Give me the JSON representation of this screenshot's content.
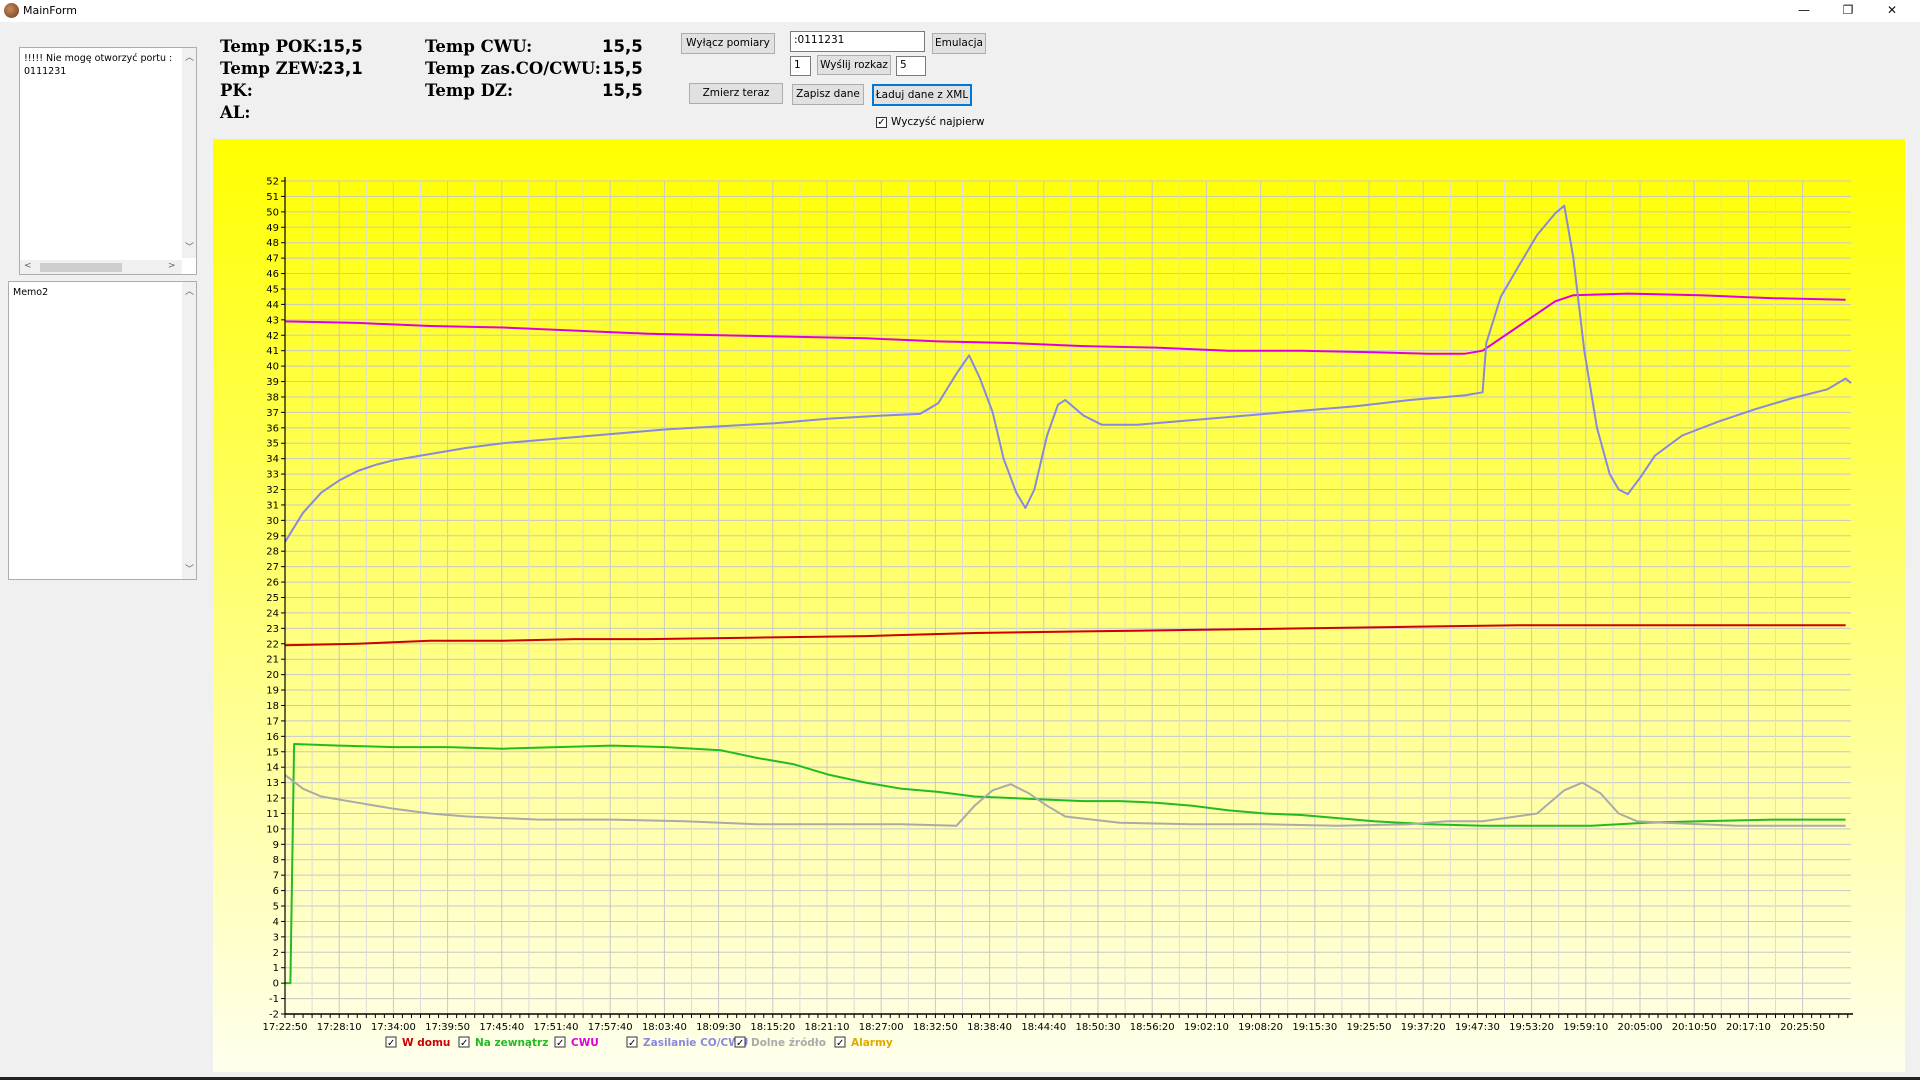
{
  "window": {
    "title": "MainForm",
    "minimize": "—",
    "restore": "❐",
    "close": "✕"
  },
  "memo1": {
    "lines": "!!!!! Nie mogę otworzyć portu :\n0111231"
  },
  "memo2": {
    "text": "Memo2"
  },
  "readouts": {
    "temp_pok_label": "Temp POK:",
    "temp_pok_value": "15,5",
    "temp_zew_label": "Temp ZEW:",
    "temp_zew_value": "23,1",
    "pk_label": "PK:",
    "al_label": "AL:",
    "temp_cwu_label": "Temp CWU:",
    "temp_cwu_value": "15,5",
    "temp_zas_label": "Temp zas.CO/CWU:",
    "temp_zas_value": "15,5",
    "temp_dz_label": "Temp DZ:",
    "temp_dz_value": "15,5"
  },
  "controls": {
    "wylacz_pomiary": "Wyłącz pomiary",
    "zmierz_teraz": "Zmierz teraz",
    "command_input": ":0111231",
    "emulacja": "Emulacja",
    "rozkaz_num": "1",
    "wyslij_rozkaz": "Wyślij rozkaz",
    "rozkaz_param": "5",
    "zapisz_dane": "Zapisz dane",
    "laduj_dane": "Ładuj dane z XML",
    "wyczysc_label": "Wyczyść najpierw",
    "wyczysc_checked": true
  },
  "chart_data": {
    "type": "line",
    "ylim": [
      -2,
      52
    ],
    "y_ticks": [
      -2,
      -1,
      0,
      1,
      2,
      3,
      4,
      5,
      6,
      7,
      8,
      9,
      10,
      11,
      12,
      13,
      14,
      15,
      16,
      17,
      18,
      19,
      20,
      21,
      22,
      23,
      24,
      25,
      26,
      27,
      28,
      29,
      30,
      31,
      32,
      33,
      34,
      35,
      36,
      37,
      38,
      39,
      40,
      41,
      42,
      43,
      44,
      45,
      46,
      47,
      48,
      49,
      50,
      51,
      52
    ],
    "x_ticks": [
      "17:22:50",
      "17:28:10",
      "17:34:00",
      "17:39:50",
      "17:45:40",
      "17:51:40",
      "17:57:40",
      "18:03:40",
      "18:09:30",
      "18:15:20",
      "18:21:10",
      "18:27:00",
      "18:32:50",
      "18:38:40",
      "18:44:40",
      "18:50:30",
      "18:56:20",
      "19:02:10",
      "19:08:20",
      "19:15:30",
      "19:25:50",
      "19:37:20",
      "19:47:30",
      "19:53:20",
      "19:59:10",
      "20:05:00",
      "20:10:50",
      "20:17:10",
      "20:25:50"
    ],
    "grid": true,
    "legend_position": "bottom",
    "background": [
      "#ffff00",
      "#ffffee"
    ],
    "series": [
      {
        "name": "W domu",
        "color": "#cc0000",
        "checked": true,
        "points": [
          [
            0,
            21.9
          ],
          [
            4,
            22.0
          ],
          [
            8,
            22.2
          ],
          [
            12,
            22.2
          ],
          [
            16,
            22.3
          ],
          [
            20,
            22.3
          ],
          [
            26,
            22.4
          ],
          [
            32,
            22.5
          ],
          [
            38,
            22.7
          ],
          [
            44,
            22.8
          ],
          [
            50,
            22.9
          ],
          [
            56,
            23.0
          ],
          [
            62,
            23.1
          ],
          [
            68,
            23.2
          ],
          [
            72,
            23.2
          ],
          [
            78,
            23.2
          ],
          [
            83,
            23.2
          ],
          [
            86,
            23.2
          ]
        ]
      },
      {
        "name": "Na zewnątrz",
        "color": "#22bb22",
        "checked": true,
        "points": [
          [
            0,
            0
          ],
          [
            0.3,
            0
          ],
          [
            0.5,
            15.5
          ],
          [
            3,
            15.4
          ],
          [
            6,
            15.3
          ],
          [
            9,
            15.3
          ],
          [
            12,
            15.2
          ],
          [
            15,
            15.3
          ],
          [
            18,
            15.4
          ],
          [
            21,
            15.3
          ],
          [
            24,
            15.1
          ],
          [
            26,
            14.6
          ],
          [
            28,
            14.2
          ],
          [
            30,
            13.5
          ],
          [
            32,
            13.0
          ],
          [
            34,
            12.6
          ],
          [
            36,
            12.4
          ],
          [
            38,
            12.1
          ],
          [
            40,
            12.0
          ],
          [
            42,
            11.9
          ],
          [
            44,
            11.8
          ],
          [
            46,
            11.8
          ],
          [
            48,
            11.7
          ],
          [
            50,
            11.5
          ],
          [
            52,
            11.2
          ],
          [
            54,
            11.0
          ],
          [
            56,
            10.9
          ],
          [
            58,
            10.7
          ],
          [
            60,
            10.5
          ],
          [
            63,
            10.3
          ],
          [
            66,
            10.2
          ],
          [
            69,
            10.2
          ],
          [
            72,
            10.2
          ],
          [
            75,
            10.4
          ],
          [
            78,
            10.5
          ],
          [
            82,
            10.6
          ],
          [
            86,
            10.6
          ]
        ]
      },
      {
        "name": "CWU",
        "color": "#dd00dd",
        "checked": true,
        "points": [
          [
            0,
            42.9
          ],
          [
            4,
            42.8
          ],
          [
            8,
            42.6
          ],
          [
            12,
            42.5
          ],
          [
            16,
            42.3
          ],
          [
            20,
            42.1
          ],
          [
            24,
            42.0
          ],
          [
            28,
            41.9
          ],
          [
            32,
            41.8
          ],
          [
            36,
            41.6
          ],
          [
            40,
            41.5
          ],
          [
            44,
            41.3
          ],
          [
            48,
            41.2
          ],
          [
            52,
            41.0
          ],
          [
            56,
            41.0
          ],
          [
            60,
            40.9
          ],
          [
            63,
            40.8
          ],
          [
            65,
            40.8
          ],
          [
            66,
            41.0
          ],
          [
            67,
            41.8
          ],
          [
            68,
            42.6
          ],
          [
            69,
            43.4
          ],
          [
            70,
            44.2
          ],
          [
            71,
            44.6
          ],
          [
            74,
            44.7
          ],
          [
            78,
            44.6
          ],
          [
            82,
            44.4
          ],
          [
            86,
            44.3
          ]
        ]
      },
      {
        "name": "Zasilanie CO/CWU",
        "color": "#8888dd",
        "checked": true,
        "points": [
          [
            0,
            28.6
          ],
          [
            1,
            30.5
          ],
          [
            2,
            31.8
          ],
          [
            3,
            32.6
          ],
          [
            4,
            33.2
          ],
          [
            5,
            33.6
          ],
          [
            6,
            33.9
          ],
          [
            8,
            34.3
          ],
          [
            10,
            34.7
          ],
          [
            12,
            35.0
          ],
          [
            15,
            35.3
          ],
          [
            18,
            35.6
          ],
          [
            21,
            35.9
          ],
          [
            24,
            36.1
          ],
          [
            27,
            36.3
          ],
          [
            30,
            36.6
          ],
          [
            33,
            36.8
          ],
          [
            35,
            36.9
          ],
          [
            36,
            37.6
          ],
          [
            37,
            39.5
          ],
          [
            37.7,
            40.7
          ],
          [
            38.3,
            39.2
          ],
          [
            39,
            37.0
          ],
          [
            39.6,
            34.0
          ],
          [
            40.3,
            31.8
          ],
          [
            40.8,
            30.8
          ],
          [
            41.3,
            32.0
          ],
          [
            42,
            35.5
          ],
          [
            42.6,
            37.5
          ],
          [
            43,
            37.8
          ],
          [
            44,
            36.8
          ],
          [
            45,
            36.2
          ],
          [
            47,
            36.2
          ],
          [
            50,
            36.5
          ],
          [
            53,
            36.8
          ],
          [
            56,
            37.1
          ],
          [
            59,
            37.4
          ],
          [
            62,
            37.8
          ],
          [
            65,
            38.1
          ],
          [
            66,
            38.3
          ],
          [
            66.2,
            41.5
          ],
          [
            67,
            44.5
          ],
          [
            68,
            46.5
          ],
          [
            69,
            48.5
          ],
          [
            70,
            49.9
          ],
          [
            70.5,
            50.4
          ],
          [
            71,
            47.0
          ],
          [
            71.6,
            41.0
          ],
          [
            72.3,
            36.0
          ],
          [
            73,
            33.0
          ],
          [
            73.5,
            32.0
          ],
          [
            74,
            31.7
          ],
          [
            74.7,
            32.8
          ],
          [
            75.5,
            34.2
          ],
          [
            77,
            35.5
          ],
          [
            79,
            36.4
          ],
          [
            81,
            37.2
          ],
          [
            83,
            37.9
          ],
          [
            85,
            38.5
          ],
          [
            86,
            39.2
          ],
          [
            86.3,
            38.9
          ]
        ]
      },
      {
        "name": "Dolne źródło",
        "color": "#aaaaaa",
        "checked": true,
        "points": [
          [
            0,
            13.5
          ],
          [
            1,
            12.6
          ],
          [
            2,
            12.1
          ],
          [
            4,
            11.7
          ],
          [
            6,
            11.3
          ],
          [
            8,
            11.0
          ],
          [
            10,
            10.8
          ],
          [
            14,
            10.6
          ],
          [
            18,
            10.6
          ],
          [
            22,
            10.5
          ],
          [
            26,
            10.3
          ],
          [
            30,
            10.3
          ],
          [
            34,
            10.3
          ],
          [
            37,
            10.2
          ],
          [
            38,
            11.5
          ],
          [
            39,
            12.5
          ],
          [
            40,
            12.9
          ],
          [
            41,
            12.3
          ],
          [
            42,
            11.5
          ],
          [
            43,
            10.8
          ],
          [
            46,
            10.4
          ],
          [
            50,
            10.3
          ],
          [
            54,
            10.3
          ],
          [
            58,
            10.2
          ],
          [
            62,
            10.3
          ],
          [
            64,
            10.5
          ],
          [
            66,
            10.5
          ],
          [
            69,
            11.0
          ],
          [
            70.5,
            12.5
          ],
          [
            71.5,
            13.0
          ],
          [
            72.5,
            12.3
          ],
          [
            73.5,
            11.0
          ],
          [
            74.5,
            10.5
          ],
          [
            76,
            10.4
          ],
          [
            80,
            10.2
          ],
          [
            83,
            10.2
          ],
          [
            86,
            10.2
          ]
        ]
      },
      {
        "name": "Alarmy",
        "color": "#ddaa00",
        "checked": true,
        "points": []
      }
    ]
  }
}
